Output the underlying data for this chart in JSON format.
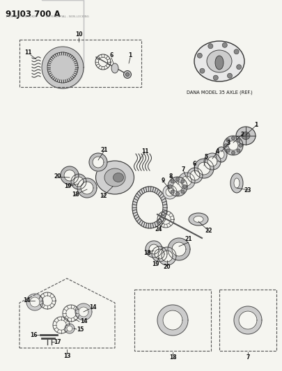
{
  "title": "91J03 700 A",
  "bg_color": "#f5f5f0",
  "text_color": "#111111",
  "dana_label": "DANA MODEL 35 AXLE (REF.)",
  "figsize": [
    4.05,
    5.33
  ],
  "dpi": 100,
  "gear_color": "#444444",
  "part_color": "#555555",
  "line_color": "#222222"
}
